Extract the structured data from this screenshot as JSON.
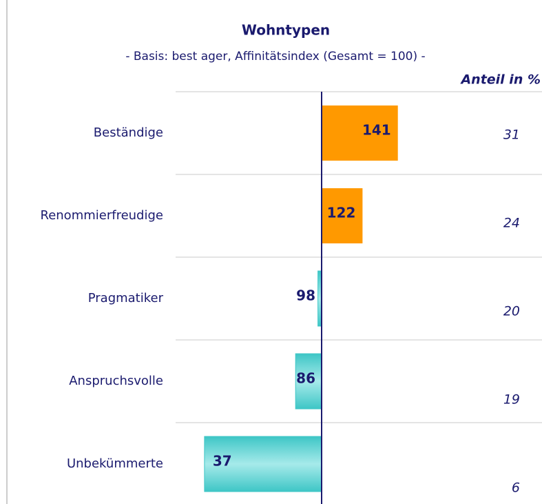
{
  "chart_data": {
    "type": "diverging-bar",
    "title": "Wohntypen",
    "subtitle": "- Basis: best ager, Affinitätsindex (Gesamt = 100) -",
    "share_header": "Anteil in %",
    "categories": [
      "Beständige",
      "Renommierfreudige",
      "Pragmatiker",
      "Anspruchsvolle",
      "Unbekümmerte"
    ],
    "values": [
      141,
      122,
      98,
      86,
      37
    ],
    "shares": [
      31,
      24,
      20,
      19,
      6
    ],
    "baseline": 100,
    "xlim": [
      20,
      150
    ],
    "colors": {
      "above": "#ff9900",
      "below": "#3ec6c6"
    },
    "grid": true
  }
}
